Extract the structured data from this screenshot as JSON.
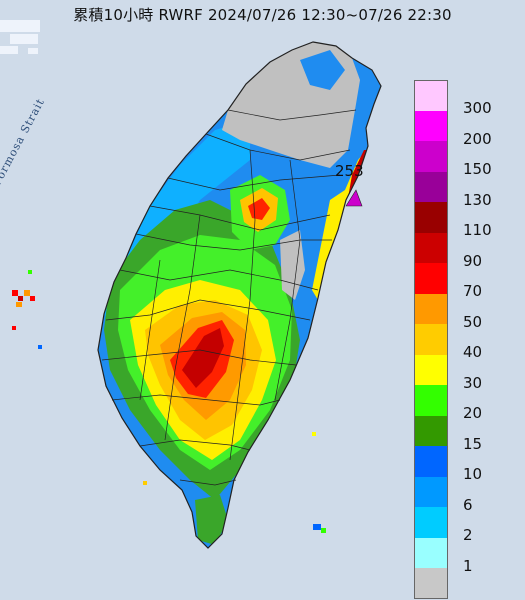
{
  "title": "累積10小時 RWRF 2024/07/26 12:30~07/26 22:30",
  "map": {
    "sea_label": "Formosa Strait",
    "max_value_label": "253",
    "colors": {
      "sea": "#cfdbe9",
      "outside": "#b9b9b9",
      "border": "#222222"
    }
  },
  "legend": {
    "items": [
      {
        "label": "300",
        "color": "#ffc8ff"
      },
      {
        "label": "200",
        "color": "#ff00ff"
      },
      {
        "label": "150",
        "color": "#cc00cc"
      },
      {
        "label": "130",
        "color": "#990099"
      },
      {
        "label": "110",
        "color": "#990000"
      },
      {
        "label": "90",
        "color": "#cc0000"
      },
      {
        "label": "70",
        "color": "#ff0000"
      },
      {
        "label": "50",
        "color": "#ff9900"
      },
      {
        "label": "40",
        "color": "#ffcc00"
      },
      {
        "label": "30",
        "color": "#ffff00"
      },
      {
        "label": "20",
        "color": "#33ff00"
      },
      {
        "label": "15",
        "color": "#339900"
      },
      {
        "label": "10",
        "color": "#0066ff"
      },
      {
        "label": "6",
        "color": "#0099ff"
      },
      {
        "label": "2",
        "color": "#00ccff"
      },
      {
        "label": "1",
        "color": "#99ffff"
      },
      {
        "label": "",
        "color": "#c8c8c8"
      }
    ]
  }
}
